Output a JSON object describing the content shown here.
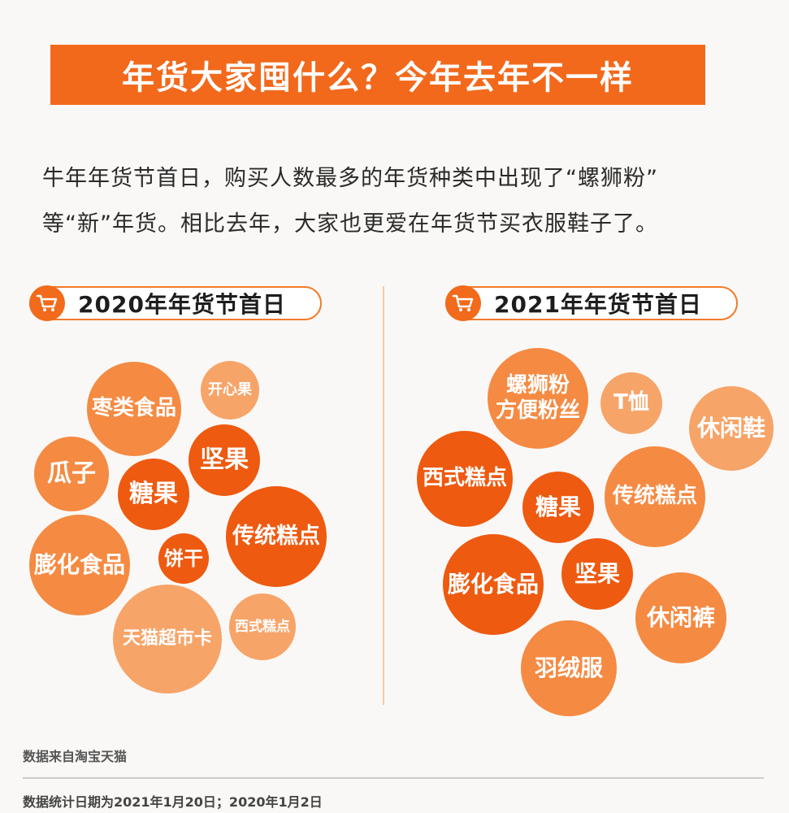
{
  "title": "年货大家囤什么？今年去年不一样",
  "description": {
    "line1": "牛年年货节首日，购买人数最多的年货种类中出现了“螺狮粉”",
    "line2": "等“新”年货。相比去年，大家也更爱在年货节买衣服鞋子了。"
  },
  "colors": {
    "brand": "#f26a1b",
    "dark": "#ee5a10",
    "mid": "#f58a42",
    "light": "#f7a469"
  },
  "icons": {
    "cart": "shopping-cart-icon"
  },
  "panels": [
    {
      "label": "2020年年货节首日",
      "bubbles": [
        {
          "text": "枣类食品",
          "tone": "mid"
        },
        {
          "text": "开心果",
          "tone": "light"
        },
        {
          "text": "瓜子",
          "tone": "mid"
        },
        {
          "text": "坚果",
          "tone": "dark"
        },
        {
          "text": "糖果",
          "tone": "dark"
        },
        {
          "text": "传统糕点",
          "tone": "dark"
        },
        {
          "text": "膨化食品",
          "tone": "mid"
        },
        {
          "text": "饼干",
          "tone": "dark"
        },
        {
          "text": "天猫超市卡",
          "tone": "light"
        },
        {
          "text": "西式糕点",
          "tone": "light"
        }
      ]
    },
    {
      "label": "2021年年货节首日",
      "bubbles": [
        {
          "text": "螺狮粉\n方便粉丝",
          "tone": "mid"
        },
        {
          "text": "T恤",
          "tone": "light"
        },
        {
          "text": "休闲鞋",
          "tone": "light"
        },
        {
          "text": "西式糕点",
          "tone": "dark"
        },
        {
          "text": "糖果",
          "tone": "dark"
        },
        {
          "text": "传统糕点",
          "tone": "mid"
        },
        {
          "text": "膨化食品",
          "tone": "dark"
        },
        {
          "text": "坚果",
          "tone": "dark"
        },
        {
          "text": "休闲裤",
          "tone": "mid"
        },
        {
          "text": "羽绒服",
          "tone": "mid"
        }
      ]
    }
  ],
  "footer": {
    "source": "数据来自淘宝天猫",
    "dates": "数据统计日期为2021年1月20日；2020年1月2日"
  }
}
